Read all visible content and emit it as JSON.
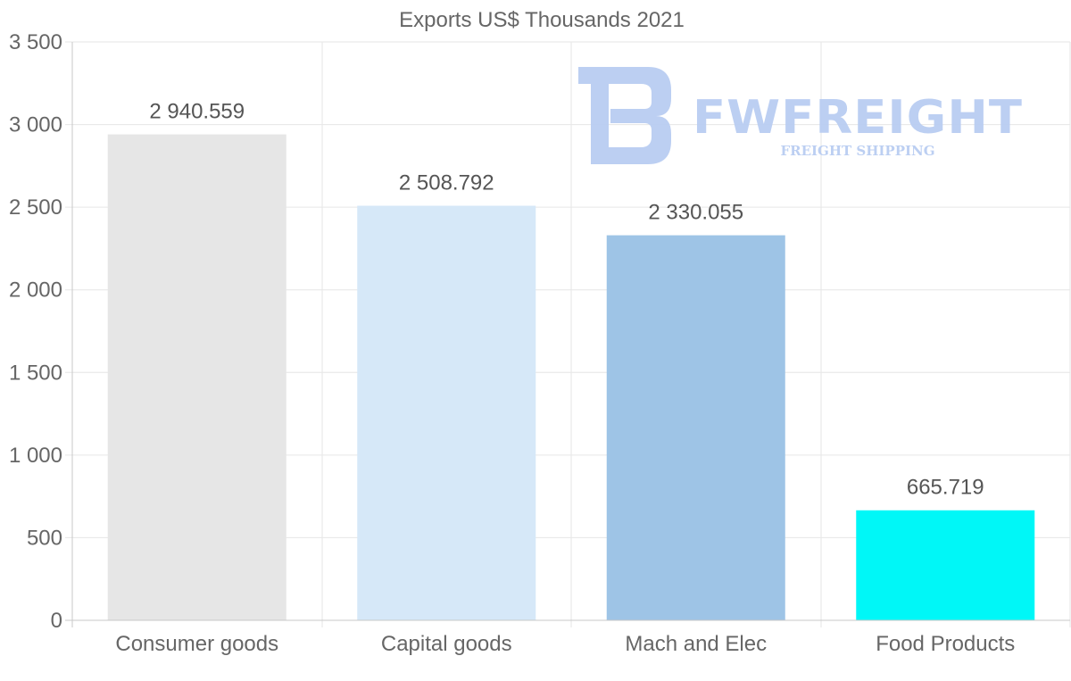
{
  "chart_data": {
    "type": "bar",
    "title": "Exports US$ Thousands 2021",
    "categories": [
      "Consumer goods",
      "Capital goods",
      "Mach and Elec",
      "Food Products"
    ],
    "values": [
      2940.559,
      2508.792,
      2330.055,
      665.719
    ],
    "value_labels": [
      "2 940.559",
      "2 508.792",
      "2 330.055",
      "665.719"
    ],
    "bar_colors": [
      "#e6e6e6",
      "#d6e8f8",
      "#9ec4e6",
      "#00f7f7"
    ],
    "ylim": [
      0,
      3500
    ],
    "yticks": [
      0,
      500,
      1000,
      1500,
      2000,
      2500,
      3000,
      3500
    ],
    "ytick_labels": [
      "0",
      "500",
      "1 000",
      "1 500",
      "2 000",
      "2 500",
      "3 000",
      "3 500"
    ],
    "xlabel": "",
    "ylabel": "",
    "grid": true,
    "legend": "none"
  },
  "watermark": {
    "name": "FWFREIGHT",
    "tagline": "FREIGHT SHIPPING",
    "color": "#b9cdf2"
  }
}
